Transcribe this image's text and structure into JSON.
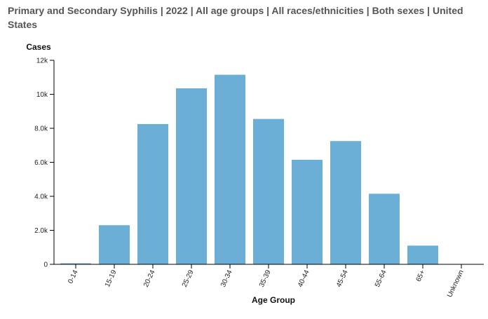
{
  "chart_data": {
    "type": "bar",
    "title": "Primary and Secondary Syphilis | 2022 | All age groups | All races/ethnicities | Both sexes | United States",
    "xlabel": "Age Group",
    "ylabel": "Cases",
    "categories": [
      "0-14",
      "15-19",
      "20-24",
      "25-29",
      "30-34",
      "35-39",
      "40-44",
      "45-54",
      "55-64",
      "65+",
      "Unknown"
    ],
    "values": [
      60,
      2300,
      8250,
      10350,
      11150,
      8550,
      6150,
      7250,
      4150,
      1100,
      0
    ],
    "ylim": [
      0,
      12000
    ],
    "yticks": [
      0,
      2000,
      4000,
      6000,
      8000,
      10000,
      12000
    ],
    "ytick_labels": [
      "0",
      "2.0k",
      "4.0k",
      "6.0k",
      "8.0k",
      "10k",
      "12k"
    ],
    "bar_color": "#6baed6",
    "grid": false,
    "legend": "none"
  }
}
